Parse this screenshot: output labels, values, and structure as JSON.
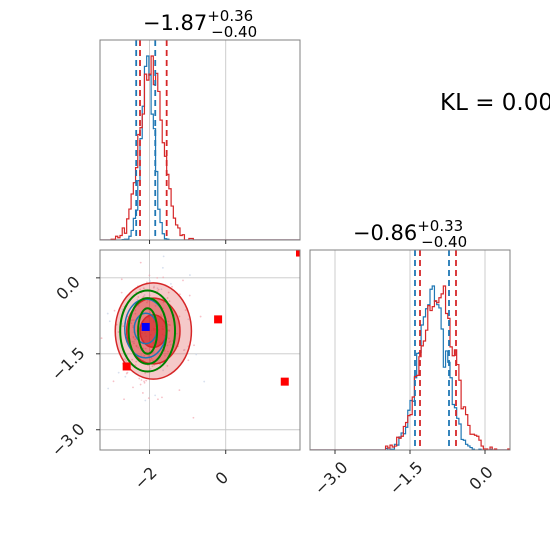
{
  "chart_data": [
    {
      "type": "histogram",
      "panel": "top-left",
      "title": "−1.87",
      "title_sup": "+0.36",
      "title_sub": "−0.40",
      "x_range": [
        -3.3,
        1.95
      ],
      "x_ticks": [
        -2,
        0
      ],
      "series": [
        {
          "color": "#1f77b4",
          "mean": -2.05,
          "sd": 0.16,
          "quantile_lines": [
            -2.35,
            -1.85
          ]
        },
        {
          "color": "#d62728",
          "mean": -1.95,
          "sd": 0.3,
          "quantile_lines": [
            -2.25,
            -1.55
          ]
        }
      ]
    },
    {
      "type": "scatter",
      "panel": "bottom-left",
      "x_range": [
        -3.3,
        1.95
      ],
      "y_range": [
        -3.4,
        0.55
      ],
      "x_ticks": [
        -2,
        0
      ],
      "x_tick_labels": [
        "−2",
        "0"
      ],
      "y_ticks": [
        0.0,
        -1.5,
        -3.0
      ],
      "y_tick_labels": [
        "0.0",
        "−1.5",
        "−3.0"
      ],
      "contours": [
        {
          "color": "#d62728",
          "filled": true,
          "center": [
            -1.9,
            -1.05
          ],
          "levels": [
            [
              0.35,
              0.32
            ],
            [
              0.7,
              0.65
            ],
            [
              1.0,
              0.95
            ]
          ]
        },
        {
          "color": "#1f77b4",
          "filled": false,
          "center": [
            -2.1,
            -1.0
          ],
          "levels": [
            [
              0.3,
              0.3
            ],
            [
              0.55,
              0.58
            ]
          ]
        },
        {
          "color": "#008000",
          "filled": false,
          "center": [
            -2.05,
            -1.05
          ],
          "levels": [
            [
              0.25,
              0.45
            ],
            [
              0.5,
              0.65
            ],
            [
              0.72,
              0.8
            ]
          ]
        }
      ],
      "markers": [
        {
          "color": "#0000ff",
          "x": -2.1,
          "y": -0.97
        },
        {
          "color": "#ff0000",
          "x": -0.2,
          "y": -0.82
        },
        {
          "color": "#ff0000",
          "x": 1.55,
          "y": -2.05
        },
        {
          "color": "#ff0000",
          "x": 1.95,
          "y": 0.5
        },
        {
          "color": "#ff0000",
          "x": -2.6,
          "y": -1.75
        }
      ]
    },
    {
      "type": "histogram",
      "panel": "bottom-right",
      "title": "−0.86",
      "title_sup": "+0.33",
      "title_sub": "−0.40",
      "x_range": [
        -3.5,
        0.5
      ],
      "x_ticks": [
        -3.0,
        -1.5,
        0.0
      ],
      "x_tick_labels": [
        "−3.0",
        "−1.5",
        "0.0"
      ],
      "series": [
        {
          "color": "#1f77b4",
          "mean": -1.05,
          "sd": 0.27,
          "quantile_lines": [
            -1.4,
            -0.72
          ]
        },
        {
          "color": "#d62728",
          "mean": -0.95,
          "sd": 0.33,
          "quantile_lines": [
            -1.3,
            -0.58
          ]
        }
      ]
    }
  ],
  "annotation": "KL = 0.00"
}
